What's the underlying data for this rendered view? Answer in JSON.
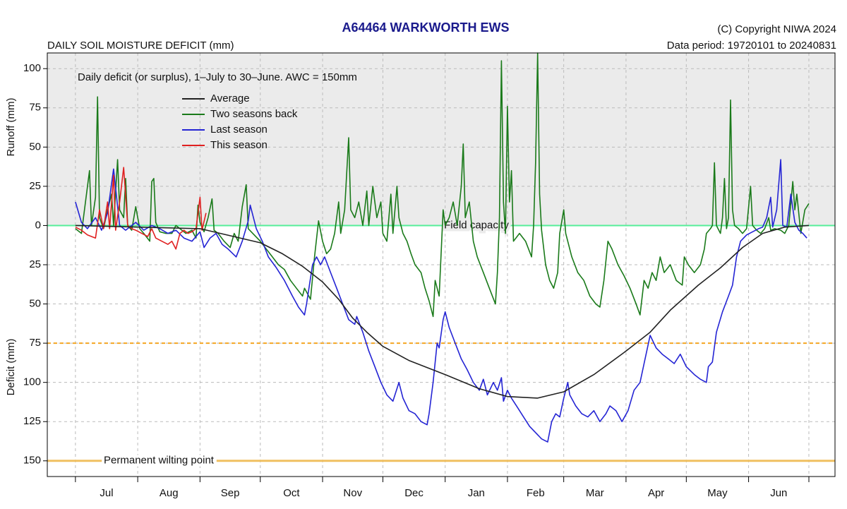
{
  "chart_data": {
    "type": "line",
    "title": "A64464  WARKWORTH EWS",
    "subtitle": "DAILY SOIL MOISTURE DEFICIT (mm)",
    "copyright": "(C) Copyright NIWA  2024",
    "data_period": "Data period:  19720101  to  20240831",
    "annotation": "Daily deficit (or surplus), 1–July to 30–June.  AWC = 150mm",
    "ylabel_upper": "Runoff (mm)",
    "ylabel_lower": "Deficit (mm)",
    "categories": [
      "Jul",
      "Aug",
      "Sep",
      "Oct",
      "Nov",
      "Dec",
      "Jan",
      "Feb",
      "Mar",
      "Apr",
      "May",
      "Jun"
    ],
    "xticks": [
      0,
      31,
      62,
      92,
      123,
      153,
      184,
      215,
      243,
      274,
      304,
      335,
      365
    ],
    "xlim": [
      -14,
      378
    ],
    "ylim": [
      -160,
      110
    ],
    "yticks": [
      100,
      75,
      50,
      25,
      0,
      {
        "value": -25,
        "label": "25"
      },
      {
        "value": -50,
        "label": "50"
      },
      {
        "value": -75,
        "label": "75"
      },
      {
        "value": -100,
        "label": "100"
      },
      {
        "value": -125,
        "label": "125"
      },
      {
        "value": -150,
        "label": "150"
      }
    ],
    "grid": true,
    "background_above_zero": "#ebebeb",
    "reference_lines": [
      {
        "value": 0,
        "label": "Field capacity",
        "color": "#55ee99",
        "style": "solid"
      },
      {
        "value": -75,
        "color": "#f5a623",
        "style": "dashed"
      },
      {
        "value": -150,
        "label": "Permanent wilting point",
        "color": "#f0c060",
        "style": "solid"
      }
    ],
    "series": [
      {
        "name": "Average",
        "color": "#222222",
        "x": [
          0,
          31,
          62,
          92,
          103,
          113,
          123,
          131,
          138,
          145,
          153,
          166,
          184,
          201,
          215,
          230,
          243,
          258,
          273,
          286,
          296,
          310,
          321,
          332,
          342,
          353,
          365
        ],
        "values": [
          0,
          -1,
          -2,
          -11,
          -18,
          -26,
          -36,
          -47,
          -59,
          -68,
          -77,
          -86,
          -95,
          -104,
          -109,
          -110,
          -106,
          -95,
          -81,
          -68,
          -54,
          -38,
          -27,
          -14,
          -5,
          -1,
          0
        ]
      },
      {
        "name": "Two seasons back",
        "color": "#1a7a1a",
        "x": [
          0,
          3,
          5,
          7,
          8,
          10,
          11,
          12,
          14,
          16,
          18,
          19,
          21,
          22,
          24,
          25,
          26,
          28,
          30,
          32,
          34,
          37,
          38,
          39,
          40,
          42,
          45,
          48,
          50,
          52,
          55,
          58,
          60,
          61,
          62,
          64,
          66,
          68,
          69,
          71,
          74,
          77,
          79,
          81,
          83,
          85,
          86,
          89,
          92,
          95,
          98,
          101,
          104,
          107,
          110,
          113,
          114,
          117,
          119,
          121,
          123,
          125,
          127,
          129,
          131,
          132,
          134,
          136,
          137,
          139,
          141,
          143,
          145,
          146,
          148,
          150,
          152,
          153,
          155,
          157,
          158,
          160,
          161,
          163,
          165,
          167,
          169,
          172,
          174,
          176,
          178,
          179,
          181,
          183,
          184,
          186,
          188,
          190,
          192,
          193,
          194,
          196,
          198,
          200,
          203,
          206,
          209,
          210,
          211,
          212,
          213,
          214,
          215,
          216,
          217,
          218,
          221,
          224,
          227,
          228,
          229,
          230,
          231,
          232,
          234,
          236,
          238,
          240,
          241,
          243,
          244,
          247,
          250,
          253,
          256,
          259,
          261,
          263,
          265,
          267,
          270,
          273,
          276,
          279,
          281,
          283,
          285,
          287,
          289,
          291,
          293,
          296,
          299,
          302,
          303,
          305,
          308,
          311,
          313,
          314,
          316,
          317,
          318,
          319,
          321,
          322,
          323,
          324,
          325,
          326,
          327,
          328,
          330,
          332,
          334,
          336,
          337,
          339,
          341,
          343,
          345,
          346,
          348,
          351,
          353,
          355,
          357,
          358,
          359,
          361,
          363,
          365
        ],
        "values": [
          -2,
          -5,
          15,
          35,
          0,
          18,
          82,
          5,
          -2,
          10,
          20,
          0,
          42,
          10,
          5,
          30,
          0,
          -3,
          12,
          -2,
          -5,
          -10,
          28,
          30,
          2,
          -4,
          -5,
          -5,
          0,
          -2,
          -5,
          -3,
          -8,
          13,
          2,
          -4,
          5,
          17,
          -3,
          -5,
          -10,
          -14,
          -5,
          -10,
          12,
          26,
          -2,
          -6,
          -10,
          -15,
          -20,
          -25,
          -28,
          -35,
          -40,
          -45,
          -40,
          -47,
          -20,
          3,
          -10,
          -18,
          -15,
          -5,
          15,
          -5,
          10,
          56,
          10,
          5,
          15,
          0,
          22,
          0,
          25,
          5,
          15,
          -5,
          -10,
          20,
          -5,
          25,
          5,
          -5,
          -10,
          -18,
          -25,
          -30,
          -40,
          -48,
          -58,
          -35,
          -45,
          10,
          0,
          5,
          15,
          0,
          25,
          52,
          5,
          15,
          -10,
          -20,
          -30,
          -40,
          -50,
          -30,
          5,
          105,
          15,
          -5,
          76,
          15,
          35,
          -10,
          -5,
          -10,
          -20,
          0,
          40,
          110,
          20,
          -3,
          -25,
          -35,
          -40,
          -30,
          -5,
          10,
          -5,
          -20,
          -30,
          -35,
          -45,
          -50,
          -52,
          -35,
          -10,
          -15,
          -25,
          -32,
          -40,
          -50,
          -57,
          -35,
          -40,
          -30,
          -35,
          -20,
          -30,
          -25,
          -35,
          -38,
          -20,
          -25,
          -30,
          -25,
          -15,
          -5,
          -2,
          0,
          40,
          0,
          -5,
          5,
          30,
          -2,
          5,
          80,
          10,
          0,
          -2,
          -5,
          -2,
          25,
          0,
          -3,
          -5,
          -2,
          5,
          -3,
          -2,
          -3,
          -5,
          0,
          28,
          10,
          20,
          -5,
          10,
          14
        ]
      },
      {
        "name": "Last season",
        "color": "#2424d4",
        "x": [
          0,
          3,
          6,
          10,
          13,
          16,
          19,
          22,
          25,
          30,
          34,
          38,
          42,
          46,
          50,
          54,
          58,
          62,
          64,
          67,
          70,
          73,
          76,
          80,
          83,
          86,
          87,
          90,
          93,
          96,
          100,
          104,
          108,
          111,
          114,
          115,
          118,
          120,
          122,
          124,
          127,
          130,
          133,
          136,
          139,
          140,
          143,
          146,
          149,
          152,
          155,
          158,
          161,
          163,
          166,
          169,
          172,
          175,
          176,
          178,
          180,
          181,
          183,
          184,
          186,
          189,
          192,
          195,
          198,
          201,
          203,
          205,
          208,
          210,
          212,
          213,
          215,
          217,
          220,
          223,
          226,
          229,
          232,
          235,
          237,
          239,
          241,
          243,
          245,
          246,
          249,
          252,
          255,
          258,
          261,
          264,
          266,
          269,
          272,
          275,
          278,
          281,
          283,
          286,
          289,
          292,
          295,
          298,
          301,
          304,
          308,
          311,
          314,
          315,
          317,
          319,
          322,
          325,
          327,
          329,
          331,
          334,
          337,
          340,
          342,
          344,
          346,
          347,
          349,
          351,
          352,
          354,
          356,
          358,
          360,
          362,
          364
        ],
        "values": [
          15,
          2,
          -2,
          5,
          -3,
          8,
          36,
          0,
          -3,
          2,
          -3,
          0,
          -2,
          -5,
          -3,
          -8,
          -10,
          -4,
          -14,
          -8,
          -5,
          -12,
          -15,
          -20,
          -10,
          3,
          13,
          -2,
          -10,
          -20,
          -27,
          -35,
          -45,
          -52,
          -57,
          -50,
          -25,
          -20,
          -25,
          -20,
          -30,
          -40,
          -50,
          -60,
          -63,
          -58,
          -68,
          -80,
          -90,
          -100,
          -108,
          -112,
          -100,
          -110,
          -118,
          -120,
          -125,
          -127,
          -120,
          -100,
          -75,
          -78,
          -60,
          -55,
          -65,
          -75,
          -85,
          -92,
          -100,
          -105,
          -98,
          -108,
          -100,
          -105,
          -97,
          -112,
          -105,
          -110,
          -116,
          -122,
          -128,
          -132,
          -136,
          -138,
          -125,
          -120,
          -122,
          -110,
          -100,
          -108,
          -115,
          -120,
          -122,
          -118,
          -125,
          -120,
          -115,
          -118,
          -125,
          -118,
          -105,
          -100,
          -88,
          -70,
          -78,
          -82,
          -85,
          -88,
          -82,
          -90,
          -95,
          -98,
          -100,
          -90,
          -87,
          -68,
          -55,
          -45,
          -38,
          -20,
          -10,
          -6,
          -4,
          -2,
          -1,
          5,
          18,
          -1,
          10,
          42,
          0,
          -1,
          20,
          2,
          -3,
          -5,
          -8
        ]
      },
      {
        "name": "This season",
        "color": "#e02020",
        "x": [
          0,
          3,
          6,
          10,
          12,
          14,
          16,
          17,
          19,
          20,
          22,
          24,
          26,
          28,
          30,
          33,
          36,
          38,
          40,
          43,
          46,
          48,
          50,
          52,
          54,
          56,
          58,
          60,
          62,
          63,
          65
        ],
        "values": [
          -1,
          -3,
          -6,
          -8,
          10,
          -2,
          15,
          -2,
          32,
          -3,
          15,
          37,
          0,
          -2,
          -3,
          -5,
          -7,
          -2,
          -8,
          -10,
          -12,
          -10,
          -15,
          -5,
          -3,
          -5,
          -4,
          -2,
          18,
          -3,
          8
        ]
      }
    ]
  }
}
